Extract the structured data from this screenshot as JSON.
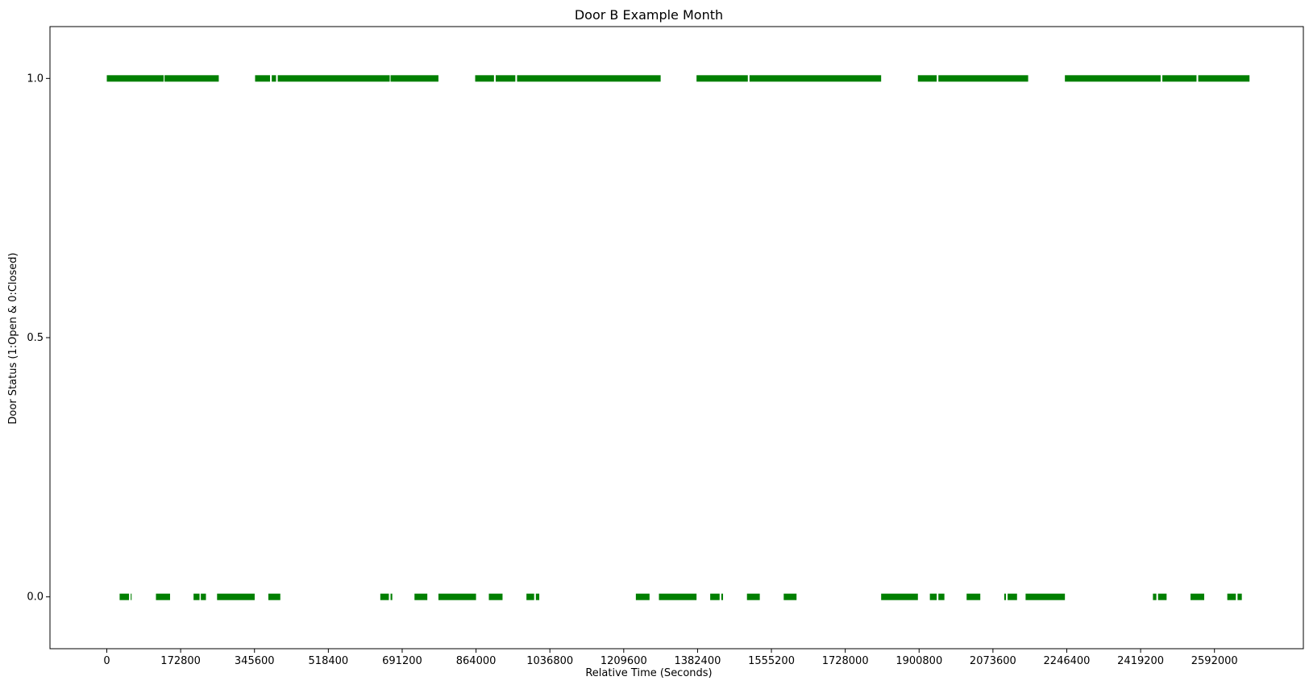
{
  "chart_data": {
    "type": "scatter",
    "title": "Door B Example Month",
    "xlabel": "Relative Time (Seconds)",
    "ylabel": "Door Status (1:Open & 0:Closed)",
    "xlim": [
      -133000,
      2800000
    ],
    "ylim": [
      -0.1,
      1.1
    ],
    "x_ticks": [
      0,
      172800,
      345600,
      518400,
      691200,
      864000,
      1036800,
      1209600,
      1382400,
      1555200,
      1728000,
      1900800,
      2073600,
      2246400,
      2419200,
      2592000
    ],
    "x_tick_labels": [
      "0",
      "172800",
      "345600",
      "518400",
      "691200",
      "864000",
      "1036800",
      "1209600",
      "1382400",
      "1555200",
      "1728000",
      "1900800",
      "2073600",
      "2246400",
      "2419200",
      "2592000"
    ],
    "y_ticks": [
      0.0,
      0.5,
      1.0
    ],
    "y_tick_labels": [
      "0.0",
      "0.5",
      "1.0"
    ],
    "grid": false,
    "marker_color": "#007f00",
    "series": [
      {
        "y": 1.0,
        "segments": [
          [
            0,
            133000
          ],
          [
            135000,
            262000
          ],
          [
            347000,
            382000
          ],
          [
            386000,
            396000
          ],
          [
            400000,
            662000
          ],
          [
            664000,
            776000
          ],
          [
            862000,
            906000
          ],
          [
            910000,
            956000
          ],
          [
            960000,
            1296000
          ],
          [
            1380000,
            1500000
          ],
          [
            1504000,
            1812000
          ],
          [
            1898000,
            1942000
          ],
          [
            1946000,
            2156000
          ],
          [
            2242000,
            2466000
          ],
          [
            2470000,
            2550000
          ],
          [
            2554000,
            2674000
          ]
        ]
      },
      {
        "y": 0.0,
        "segments": [
          [
            30000,
            52000
          ],
          [
            56000,
            58000
          ],
          [
            115000,
            148000
          ],
          [
            203000,
            217000
          ],
          [
            220000,
            232000
          ],
          [
            258000,
            346000
          ],
          [
            378000,
            406000
          ],
          [
            640000,
            660000
          ],
          [
            664000,
            668000
          ],
          [
            720000,
            750000
          ],
          [
            776000,
            864000
          ],
          [
            894000,
            926000
          ],
          [
            982000,
            1000000
          ],
          [
            1004000,
            1012000
          ],
          [
            1238000,
            1270000
          ],
          [
            1292000,
            1380000
          ],
          [
            1412000,
            1434000
          ],
          [
            1438000,
            1442000
          ],
          [
            1498000,
            1528000
          ],
          [
            1584000,
            1614000
          ],
          [
            1812000,
            1898000
          ],
          [
            1926000,
            1942000
          ],
          [
            1946000,
            1960000
          ],
          [
            2012000,
            2044000
          ],
          [
            2100000,
            2104000
          ],
          [
            2108000,
            2130000
          ],
          [
            2150000,
            2242000
          ],
          [
            2448000,
            2456000
          ],
          [
            2460000,
            2480000
          ],
          [
            2536000,
            2568000
          ],
          [
            2622000,
            2642000
          ],
          [
            2646000,
            2656000
          ]
        ]
      }
    ]
  }
}
